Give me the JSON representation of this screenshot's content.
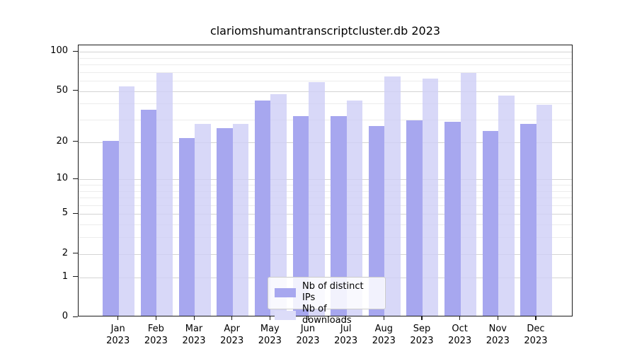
{
  "title": "clariomshumantranscriptcluster.db 2023",
  "colors": {
    "ips": "#a7a7ef",
    "downloads": "rgba(206,206,246,0.8)",
    "ips_swatch": "#a7a7ef",
    "downloads_swatch": "#dcdcf9",
    "grid_major": "#d4d4d4",
    "grid_minor": "#ececec",
    "spine": "#1a1a1a"
  },
  "legend": {
    "items": [
      {
        "label": "Nb of distinct IPs",
        "color_key": "ips_swatch"
      },
      {
        "label": "Nb of downloads",
        "color_key": "downloads_swatch"
      }
    ]
  },
  "x_axis": {
    "months": [
      "Jan",
      "Feb",
      "Mar",
      "Apr",
      "May",
      "Jun",
      "Jul",
      "Aug",
      "Sep",
      "Oct",
      "Nov",
      "Dec"
    ],
    "year": "2023"
  },
  "chart_data": {
    "type": "bar",
    "title": "clariomshumantranscriptcluster.db 2023",
    "categories": [
      "Jan 2023",
      "Feb 2023",
      "Mar 2023",
      "Apr 2023",
      "May 2023",
      "Jun 2023",
      "Jul 2023",
      "Aug 2023",
      "Sep 2023",
      "Oct 2023",
      "Nov 2023",
      "Dec 2023"
    ],
    "series": [
      {
        "name": "Nb of distinct IPs",
        "values": [
          20,
          35,
          21,
          25,
          41,
          31,
          31,
          26,
          29,
          28,
          24,
          27
        ]
      },
      {
        "name": "Nb of downloads",
        "values": [
          53,
          67,
          27,
          27,
          46,
          57,
          41,
          63,
          61,
          67,
          45,
          38
        ]
      }
    ],
    "yscale": "log1p",
    "ylim": [
      0,
      112
    ],
    "yticks": [
      100,
      50,
      20,
      10,
      5,
      2,
      1,
      0
    ],
    "grid": {
      "major": [
        1,
        2,
        5,
        10,
        20,
        50,
        100
      ],
      "minor": [
        3,
        4,
        6,
        7,
        8,
        9,
        30,
        40,
        60,
        70,
        80,
        90
      ]
    },
    "xlabel": "",
    "ylabel": "",
    "legend_position": "lower center"
  }
}
